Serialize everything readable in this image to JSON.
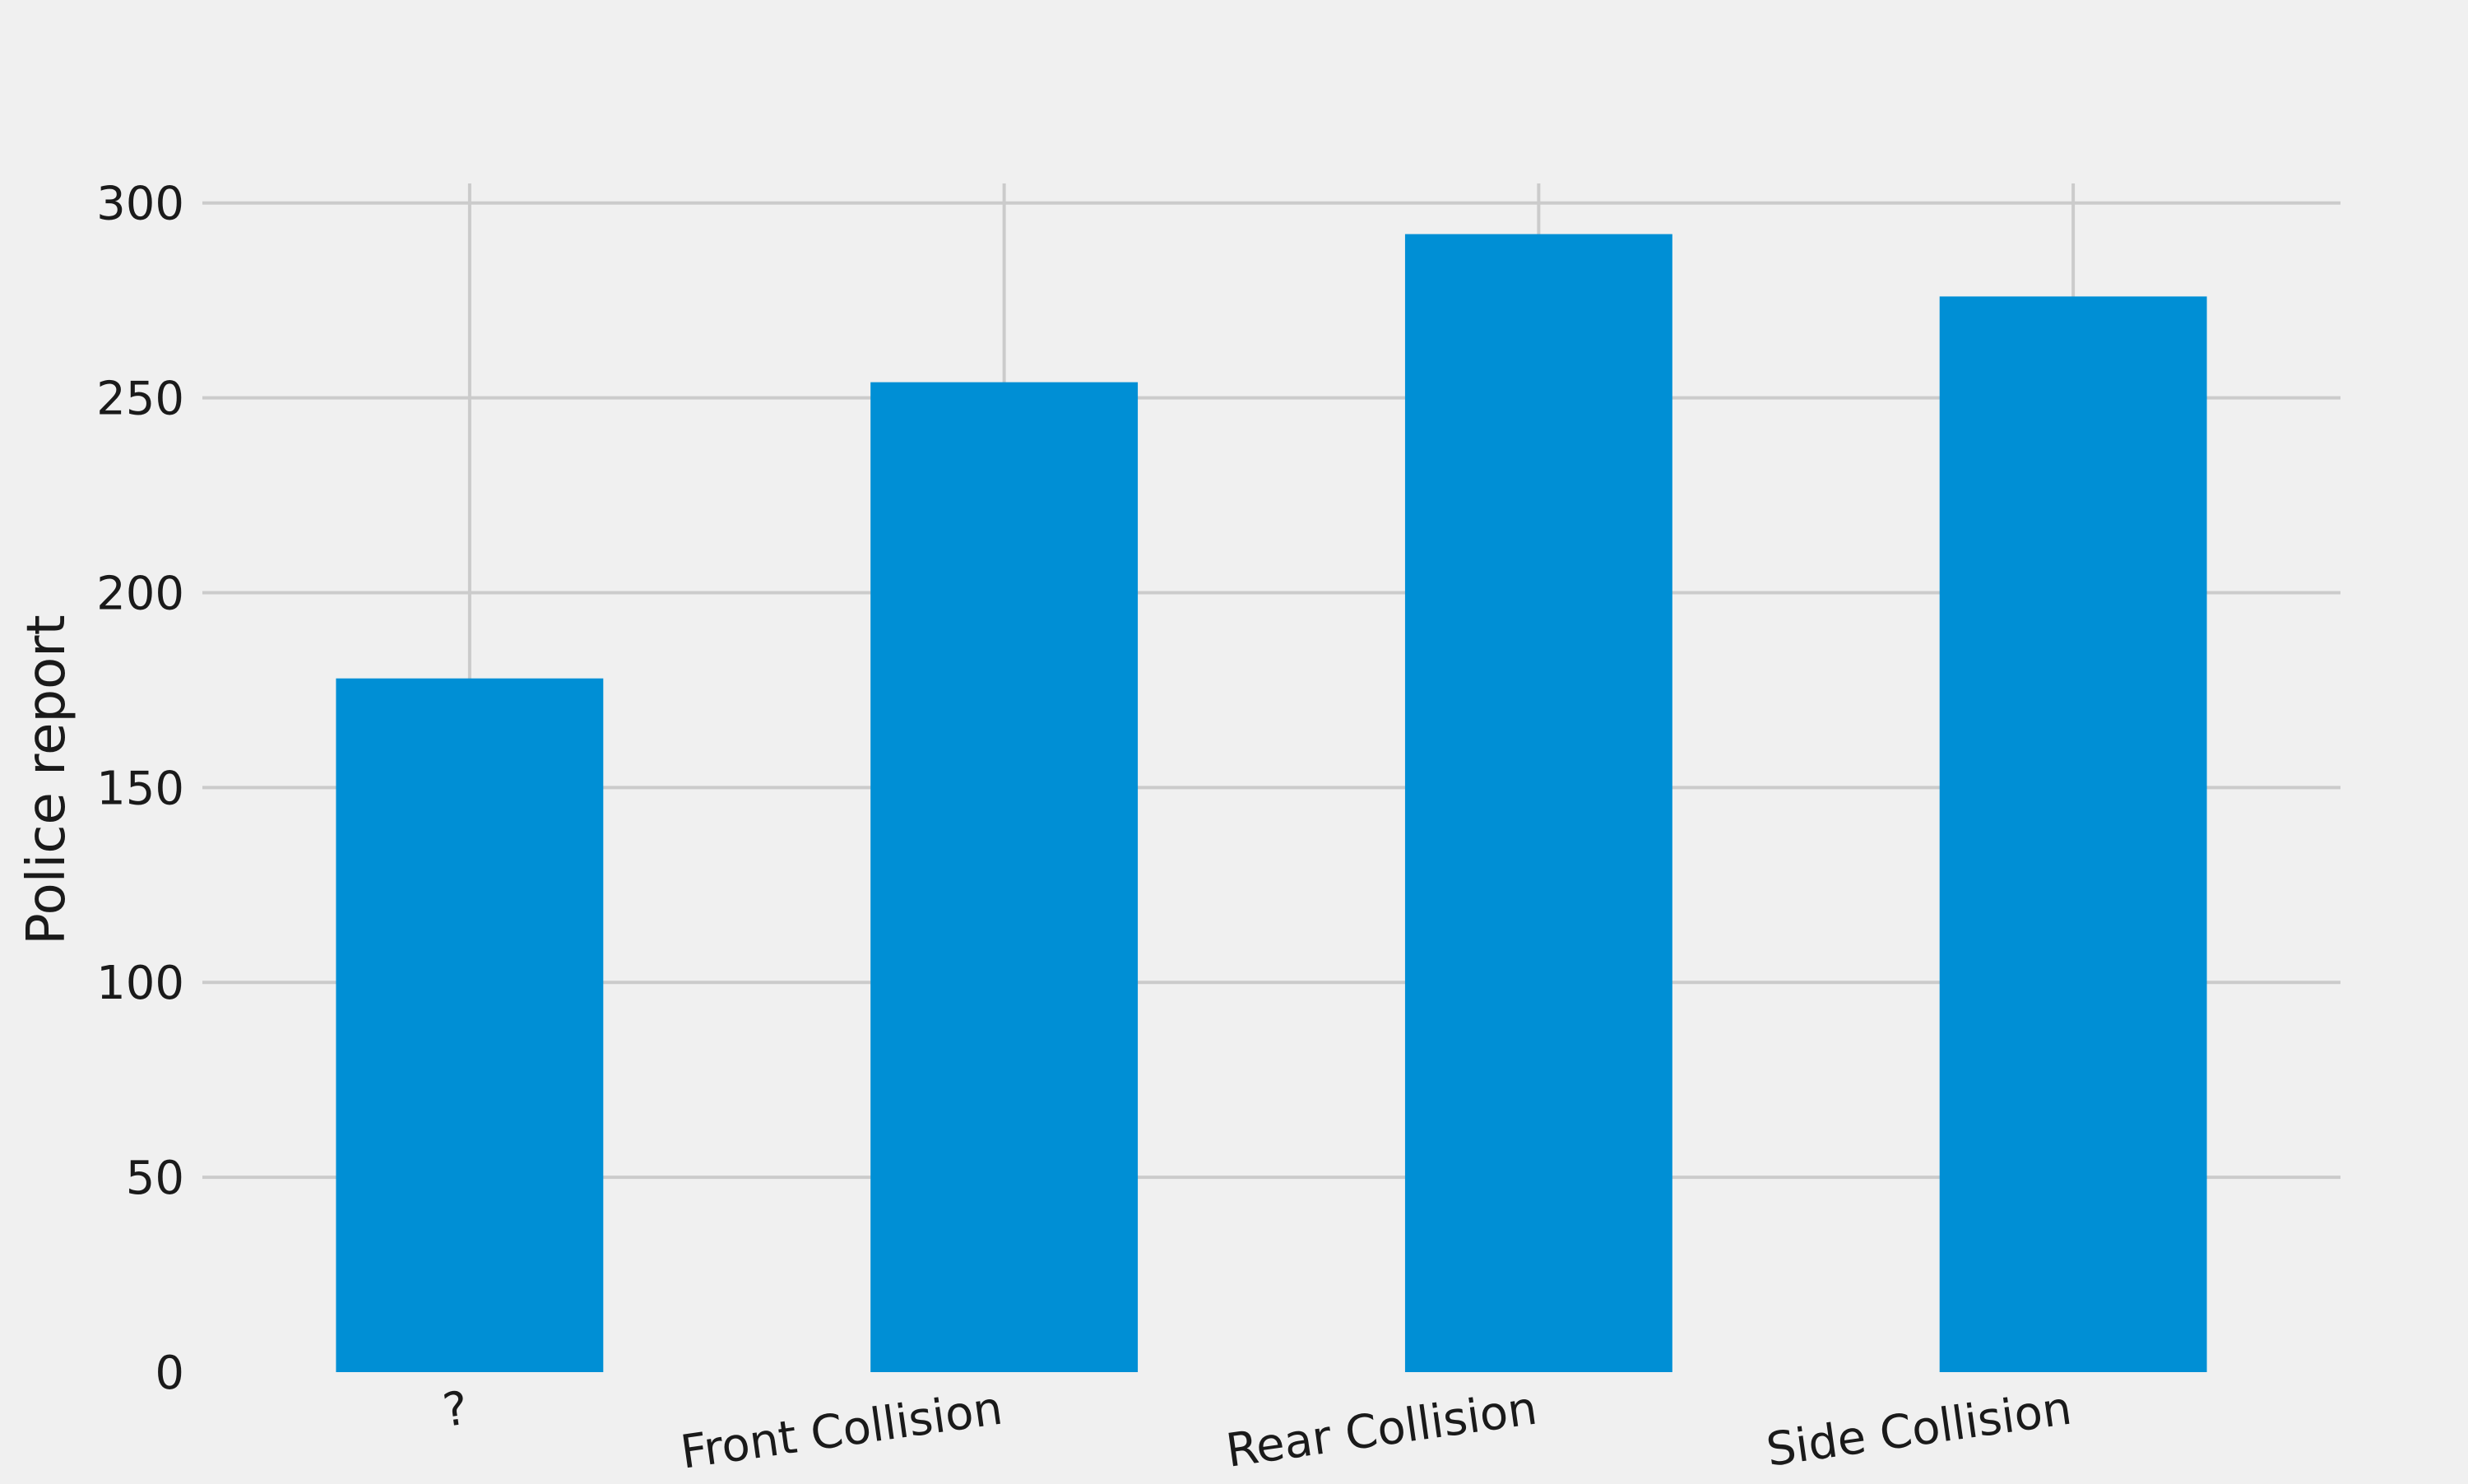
{
  "chart_data": {
    "type": "bar",
    "title": "",
    "xlabel": "",
    "ylabel": "Police report",
    "categories": [
      "?",
      "Front Collision",
      "Rear Collision",
      "Side Collision"
    ],
    "values": [
      178,
      254,
      292,
      276
    ],
    "ylim": [
      0,
      305
    ],
    "yticks": [
      "0",
      "50",
      "100",
      "150",
      "200",
      "250",
      "300"
    ],
    "grid": true,
    "legend": "none",
    "colors": {
      "bar": "#008fd5",
      "grid": "#cbcbcb",
      "background": "#f0f0f0",
      "text": "#1a1a1a"
    }
  }
}
